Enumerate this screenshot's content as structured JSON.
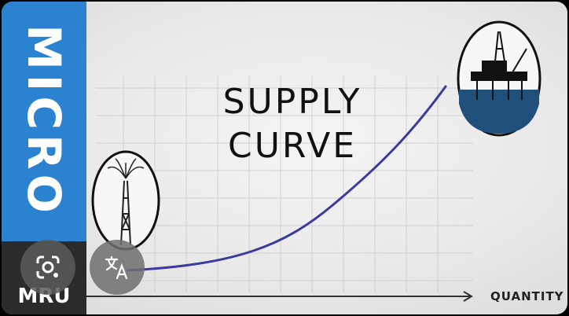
{
  "sidebar": {
    "label": "MICRO",
    "brand": "MRU",
    "color": "#2b82d0"
  },
  "title": {
    "line1": "SUPPLY",
    "line2": "CURVE"
  },
  "x_axis_label": "QUANTITY",
  "overlay_buttons": {
    "lens_icon": "google-lens-icon",
    "translate_icon": "translate-icon"
  },
  "colors": {
    "curve": "#3b3aa0",
    "ocean": "#1f4f7a",
    "axis": "#333333"
  }
}
